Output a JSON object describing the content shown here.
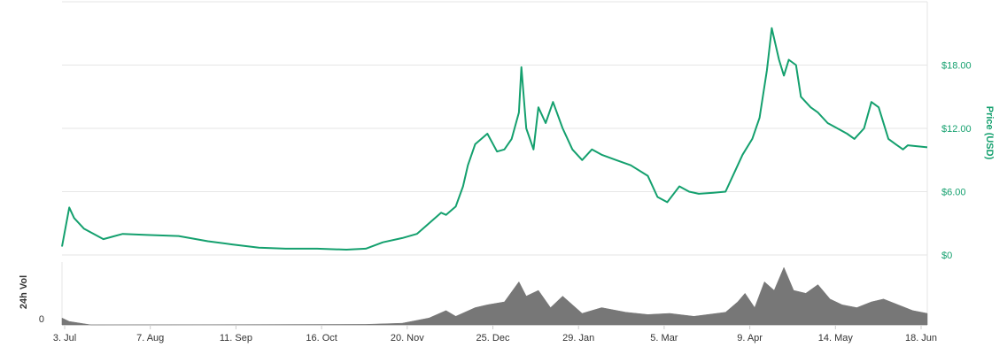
{
  "colors": {
    "price_line": "#14a06e",
    "volume_area": "#777777",
    "grid": "#e6e6e6",
    "axis_text": "#333333"
  },
  "chart_data": {
    "type": "line",
    "title": "",
    "xlabel": "",
    "ylabel": "Price (USD)",
    "y_tick_labels": [
      "$0",
      "$6.00",
      "$12.00",
      "$18.00"
    ],
    "y_ticks": [
      0,
      6,
      12,
      18
    ],
    "ylim": [
      0,
      24
    ],
    "grid": true,
    "x_tick_labels": [
      "3. Jul",
      "7. Aug",
      "11. Sep",
      "16. Oct",
      "20. Nov",
      "25. Dec",
      "29. Jan",
      "5. Mar",
      "9. Apr",
      "14. May",
      "18. Jun"
    ],
    "x_range": [
      "2017-07-03",
      "2018-06-24"
    ],
    "series": [
      {
        "x": [
          "2017-07-03",
          "2017-07-06",
          "2017-07-08",
          "2017-07-12",
          "2017-07-20",
          "2017-07-28",
          "2017-08-07",
          "2017-08-20",
          "2017-09-01",
          "2017-09-11",
          "2017-09-22",
          "2017-10-03",
          "2017-10-16",
          "2017-10-28",
          "2017-11-05",
          "2017-11-12",
          "2017-11-20",
          "2017-11-26",
          "2017-12-01",
          "2017-12-06",
          "2017-12-08",
          "2017-12-12",
          "2017-12-15",
          "2017-12-17",
          "2017-12-20",
          "2017-12-25",
          "2017-12-29",
          "2018-01-01",
          "2018-01-04",
          "2018-01-07",
          "2018-01-08",
          "2018-01-10",
          "2018-01-13",
          "2018-01-15",
          "2018-01-18",
          "2018-01-21",
          "2018-01-25",
          "2018-01-29",
          "2018-02-02",
          "2018-02-06",
          "2018-02-10",
          "2018-02-16",
          "2018-02-22",
          "2018-03-01",
          "2018-03-05",
          "2018-03-09",
          "2018-03-14",
          "2018-03-18",
          "2018-03-22",
          "2018-03-28",
          "2018-04-02",
          "2018-04-06",
          "2018-04-09",
          "2018-04-13",
          "2018-04-16",
          "2018-04-19",
          "2018-04-21",
          "2018-04-24",
          "2018-04-26",
          "2018-04-28",
          "2018-05-01",
          "2018-05-03",
          "2018-05-07",
          "2018-05-10",
          "2018-05-14",
          "2018-05-18",
          "2018-05-22",
          "2018-05-25",
          "2018-05-29",
          "2018-06-01",
          "2018-06-04",
          "2018-06-08",
          "2018-06-11",
          "2018-06-14",
          "2018-06-16",
          "2018-06-20",
          "2018-06-24"
        ],
        "y": [
          0.8,
          4.5,
          3.5,
          2.5,
          1.5,
          2.0,
          1.9,
          1.8,
          1.3,
          1.0,
          0.7,
          0.6,
          0.6,
          0.5,
          0.6,
          1.2,
          1.6,
          2.0,
          3.0,
          4.0,
          3.8,
          4.6,
          6.5,
          8.5,
          10.5,
          11.5,
          9.8,
          10.0,
          11.0,
          13.5,
          17.8,
          12.0,
          10.0,
          14.0,
          12.5,
          14.5,
          12.0,
          10.0,
          9.0,
          10.0,
          9.5,
          9.0,
          8.5,
          7.5,
          5.5,
          5.0,
          6.5,
          6.0,
          5.8,
          5.9,
          6.0,
          8.0,
          9.5,
          11.0,
          13.0,
          17.5,
          21.5,
          18.5,
          17.0,
          18.5,
          18.0,
          15.0,
          14.0,
          13.5,
          12.5,
          12.0,
          11.5,
          11.0,
          12.0,
          14.5,
          14.0,
          11.0,
          10.5,
          10.0,
          10.4,
          10.3,
          10.2
        ]
      }
    ],
    "volume": {
      "label": "24h Vol",
      "zero_label": "0",
      "x": [
        "2017-07-03",
        "2017-07-06",
        "2017-07-15",
        "2017-11-05",
        "2017-11-20",
        "2017-12-01",
        "2017-12-08",
        "2017-12-12",
        "2017-12-20",
        "2017-12-25",
        "2018-01-01",
        "2018-01-07",
        "2018-01-10",
        "2018-01-15",
        "2018-01-20",
        "2018-01-25",
        "2018-02-02",
        "2018-02-10",
        "2018-02-20",
        "2018-03-01",
        "2018-03-10",
        "2018-03-20",
        "2018-04-02",
        "2018-04-07",
        "2018-04-10",
        "2018-04-14",
        "2018-04-18",
        "2018-04-22",
        "2018-04-26",
        "2018-04-30",
        "2018-05-05",
        "2018-05-10",
        "2018-05-15",
        "2018-05-20",
        "2018-05-26",
        "2018-06-01",
        "2018-06-06",
        "2018-06-12",
        "2018-06-18",
        "2018-06-24"
      ],
      "values": [
        0.12,
        0.06,
        0.0,
        0.01,
        0.03,
        0.12,
        0.25,
        0.15,
        0.3,
        0.35,
        0.4,
        0.75,
        0.5,
        0.6,
        0.3,
        0.5,
        0.2,
        0.3,
        0.22,
        0.18,
        0.2,
        0.15,
        0.22,
        0.4,
        0.55,
        0.3,
        0.75,
        0.6,
        1.0,
        0.6,
        0.55,
        0.7,
        0.45,
        0.35,
        0.3,
        0.4,
        0.45,
        0.35,
        0.25,
        0.2
      ],
      "ylim": [
        0,
        1.0
      ]
    }
  }
}
